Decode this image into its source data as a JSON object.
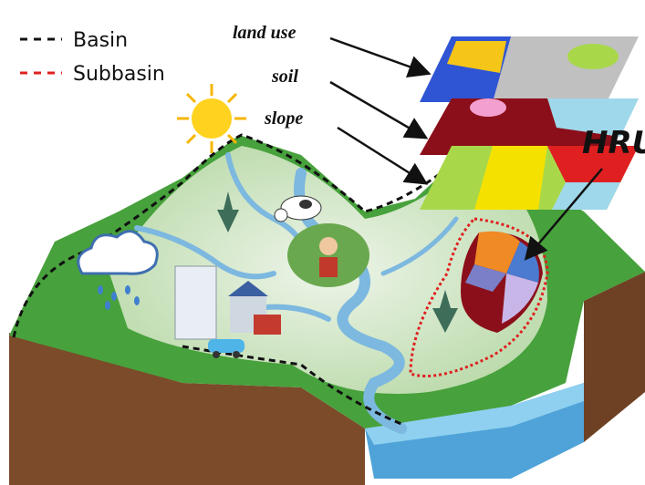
{
  "legend": [
    {
      "label": "Basin"
    },
    {
      "label": "Subbasin"
    }
  ],
  "layers": [
    {
      "label": "land use"
    },
    {
      "label": "soil"
    },
    {
      "label": "slope"
    }
  ],
  "hru": "HRU"
}
